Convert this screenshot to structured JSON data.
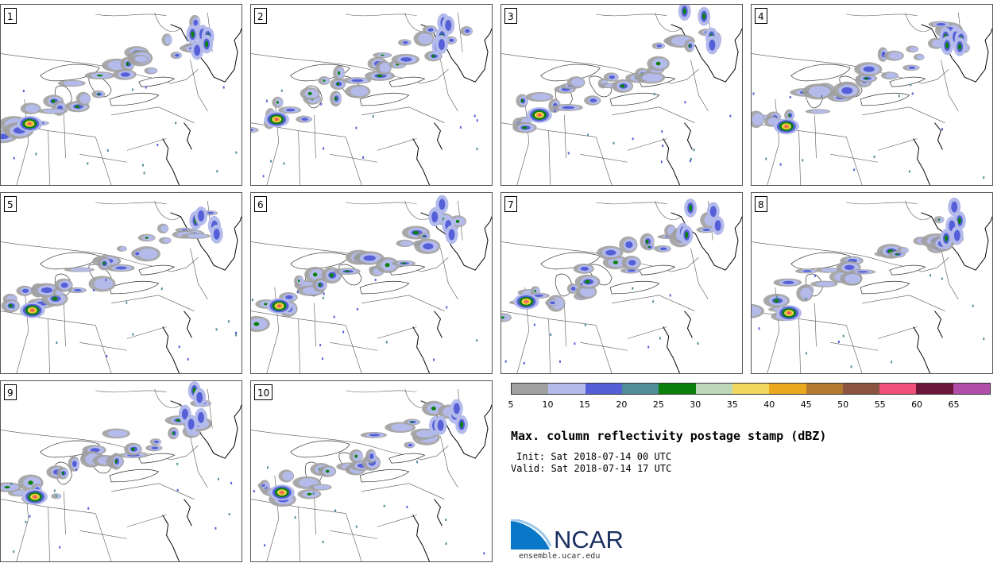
{
  "title": "Max. column reflectivity postage stamp (dBZ)",
  "init": "Init: Sat 2018-07-14 00 UTC",
  "valid": "Valid: Sat 2018-07-14 17 UTC",
  "members": [
    "1",
    "2",
    "3",
    "4",
    "5",
    "6",
    "7",
    "8",
    "9",
    "10"
  ],
  "colorbar": {
    "colors": [
      "#a0a0a0",
      "#b4bbeb",
      "#5560d8",
      "#4f8e99",
      "#0a7f0a",
      "#bcd8b8",
      "#f0d860",
      "#eaa81e",
      "#b37a30",
      "#8a5440",
      "#f0507a",
      "#6a1638",
      "#b04ea8"
    ],
    "ticks": [
      "5",
      "10",
      "15",
      "20",
      "25",
      "30",
      "35",
      "40",
      "45",
      "50",
      "55",
      "60",
      "65"
    ]
  },
  "logo": {
    "text": "NCAR",
    "url": "ensemble.ucar.edu",
    "colors": {
      "blue": "#0a78c8",
      "navy": "#1a3060"
    }
  }
}
